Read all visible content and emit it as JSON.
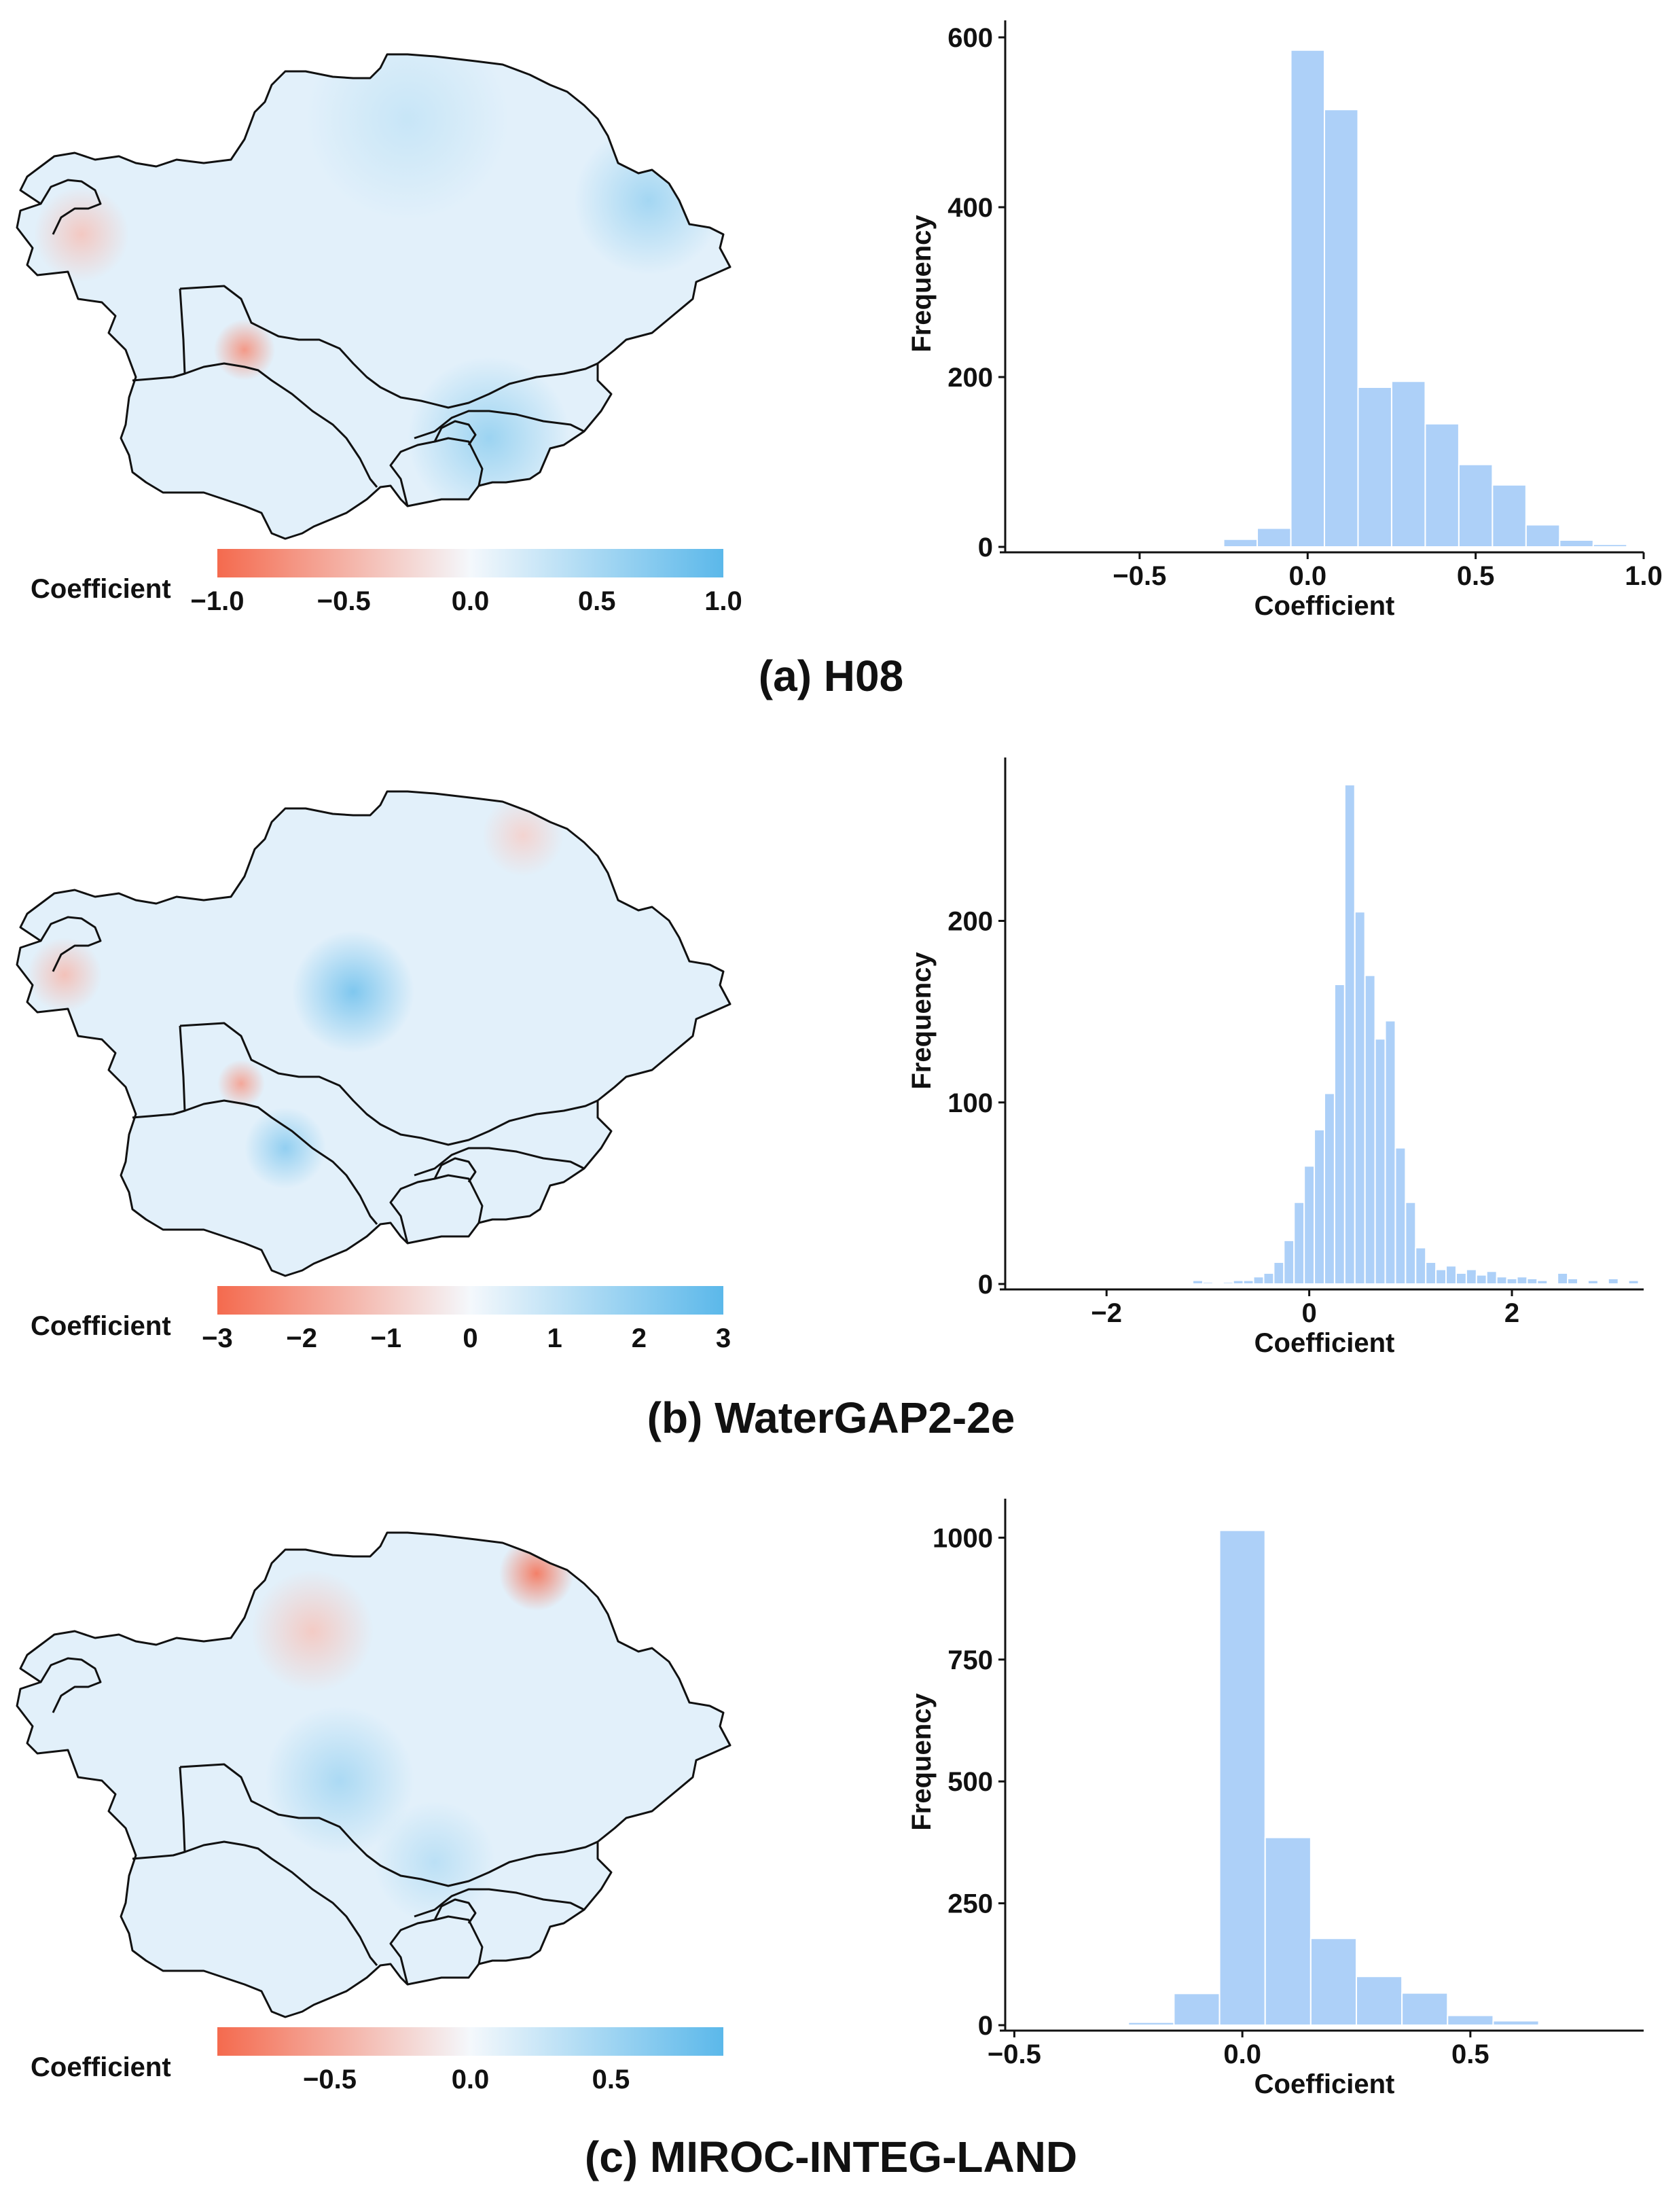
{
  "colors": {
    "negative": "#f46a4e",
    "neutral": "#f4f8fc",
    "positive": "#5bb8ea",
    "bar": "#add0f8",
    "border": "#111111"
  },
  "panels": [
    {
      "caption": "(a) H08",
      "colorbar": {
        "label": "Coefficient",
        "min": -1.0,
        "max": 1.0,
        "ticks": [
          "−1.0",
          "−0.5",
          "0.0",
          "0.5",
          "1.0"
        ],
        "tick_values": [
          -1.0,
          -0.5,
          0.0,
          0.5,
          1.0
        ]
      },
      "map": {
        "hotspots": [
          {
            "name": "east-blue",
            "value": 0.55
          },
          {
            "name": "southeast-blue",
            "value": 0.6
          },
          {
            "name": "west-red",
            "value": -0.35
          },
          {
            "name": "turkmen-red",
            "value": -0.7
          },
          {
            "name": "north-blue",
            "value": 0.3
          }
        ]
      }
    },
    {
      "caption": "(b) WaterGAP2-2e",
      "colorbar": {
        "label": "Coefficient",
        "min": -3,
        "max": 3,
        "ticks": [
          "−3",
          "−2",
          "−1",
          "0",
          "1",
          "2",
          "3"
        ],
        "tick_values": [
          -3,
          -2,
          -1,
          0,
          1,
          2,
          3
        ]
      },
      "map": {
        "hotspots": [
          {
            "name": "central-blue",
            "value": 2.4
          },
          {
            "name": "south-blue",
            "value": 2.0
          },
          {
            "name": "west-red",
            "value": -1.2
          },
          {
            "name": "turkmen-red",
            "value": -1.8
          },
          {
            "name": "north-red",
            "value": -0.8
          }
        ]
      }
    },
    {
      "caption": "(c) MIROC-INTEG-LAND",
      "colorbar": {
        "label": "Coefficient",
        "min": -0.9,
        "max": 0.9,
        "ticks": [
          "−0.5",
          "0.0",
          "0.5"
        ],
        "tick_values": [
          -0.5,
          0.0,
          0.5
        ]
      },
      "map": {
        "hotspots": [
          {
            "name": "northeast-red",
            "value": -0.8
          },
          {
            "name": "central-blue",
            "value": 0.45
          },
          {
            "name": "north-red",
            "value": -0.3
          },
          {
            "name": "southeast-blue",
            "value": 0.35
          }
        ]
      }
    }
  ],
  "chart_data": [
    {
      "type": "bar",
      "title": "",
      "xlabel": "Coefficient",
      "ylabel": "Frequency",
      "xlim": [
        -0.9,
        1.0
      ],
      "ylim": [
        0,
        620
      ],
      "xticks": [
        -0.5,
        0.0,
        0.5,
        1.0
      ],
      "xtick_labels": [
        "−0.5",
        "0.0",
        "0.5",
        "1.0"
      ],
      "yticks": [
        0,
        200,
        400,
        600
      ],
      "bin_width": 0.1,
      "bins": [
        {
          "x0": -0.45,
          "x1": -0.35,
          "count": 1
        },
        {
          "x0": -0.25,
          "x1": -0.15,
          "count": 9
        },
        {
          "x0": -0.15,
          "x1": -0.05,
          "count": 22
        },
        {
          "x0": -0.05,
          "x1": 0.05,
          "count": 585
        },
        {
          "x0": 0.05,
          "x1": 0.15,
          "count": 515
        },
        {
          "x0": 0.15,
          "x1": 0.25,
          "count": 188
        },
        {
          "x0": 0.25,
          "x1": 0.35,
          "count": 195
        },
        {
          "x0": 0.35,
          "x1": 0.45,
          "count": 145
        },
        {
          "x0": 0.45,
          "x1": 0.55,
          "count": 97
        },
        {
          "x0": 0.55,
          "x1": 0.65,
          "count": 73
        },
        {
          "x0": 0.65,
          "x1": 0.75,
          "count": 26
        },
        {
          "x0": 0.75,
          "x1": 0.85,
          "count": 8
        },
        {
          "x0": 0.85,
          "x1": 0.95,
          "count": 3
        }
      ]
    },
    {
      "type": "bar",
      "title": "",
      "xlabel": "Coefficient",
      "ylabel": "Frequency",
      "xlim": [
        -3.0,
        3.3
      ],
      "ylim": [
        0,
        290
      ],
      "xticks": [
        -2,
        0,
        2
      ],
      "xtick_labels": [
        "−2",
        "0",
        "2"
      ],
      "yticks": [
        0,
        100,
        200
      ],
      "bin_width": 0.1,
      "bins": [
        {
          "x0": -1.15,
          "x1": -1.05,
          "count": 2
        },
        {
          "x0": -1.05,
          "x1": -0.95,
          "count": 1
        },
        {
          "x0": -0.85,
          "x1": -0.75,
          "count": 1
        },
        {
          "x0": -0.75,
          "x1": -0.65,
          "count": 2
        },
        {
          "x0": -0.65,
          "x1": -0.55,
          "count": 2
        },
        {
          "x0": -0.55,
          "x1": -0.45,
          "count": 4
        },
        {
          "x0": -0.45,
          "x1": -0.35,
          "count": 6
        },
        {
          "x0": -0.35,
          "x1": -0.25,
          "count": 12
        },
        {
          "x0": -0.25,
          "x1": -0.15,
          "count": 24
        },
        {
          "x0": -0.15,
          "x1": -0.05,
          "count": 45
        },
        {
          "x0": -0.05,
          "x1": 0.05,
          "count": 65
        },
        {
          "x0": 0.05,
          "x1": 0.15,
          "count": 85
        },
        {
          "x0": 0.15,
          "x1": 0.25,
          "count": 105
        },
        {
          "x0": 0.25,
          "x1": 0.35,
          "count": 165
        },
        {
          "x0": 0.35,
          "x1": 0.45,
          "count": 275
        },
        {
          "x0": 0.45,
          "x1": 0.55,
          "count": 205
        },
        {
          "x0": 0.55,
          "x1": 0.65,
          "count": 170
        },
        {
          "x0": 0.65,
          "x1": 0.75,
          "count": 135
        },
        {
          "x0": 0.75,
          "x1": 0.85,
          "count": 145
        },
        {
          "x0": 0.85,
          "x1": 0.95,
          "count": 75
        },
        {
          "x0": 0.95,
          "x1": 1.05,
          "count": 45
        },
        {
          "x0": 1.05,
          "x1": 1.15,
          "count": 20
        },
        {
          "x0": 1.15,
          "x1": 1.25,
          "count": 12
        },
        {
          "x0": 1.25,
          "x1": 1.35,
          "count": 8
        },
        {
          "x0": 1.35,
          "x1": 1.45,
          "count": 10
        },
        {
          "x0": 1.45,
          "x1": 1.55,
          "count": 6
        },
        {
          "x0": 1.55,
          "x1": 1.65,
          "count": 8
        },
        {
          "x0": 1.65,
          "x1": 1.75,
          "count": 5
        },
        {
          "x0": 1.75,
          "x1": 1.85,
          "count": 7
        },
        {
          "x0": 1.85,
          "x1": 1.95,
          "count": 4
        },
        {
          "x0": 1.95,
          "x1": 2.05,
          "count": 3
        },
        {
          "x0": 2.05,
          "x1": 2.15,
          "count": 4
        },
        {
          "x0": 2.15,
          "x1": 2.25,
          "count": 3
        },
        {
          "x0": 2.25,
          "x1": 2.35,
          "count": 2
        },
        {
          "x0": 2.45,
          "x1": 2.55,
          "count": 6
        },
        {
          "x0": 2.55,
          "x1": 2.65,
          "count": 3
        },
        {
          "x0": 2.75,
          "x1": 2.85,
          "count": 2
        },
        {
          "x0": 2.95,
          "x1": 3.05,
          "count": 3
        },
        {
          "x0": 3.15,
          "x1": 3.25,
          "count": 2
        }
      ]
    },
    {
      "type": "bar",
      "title": "",
      "xlabel": "Coefficient",
      "ylabel": "Frequency",
      "xlim": [
        -0.52,
        0.88
      ],
      "ylim": [
        0,
        1080
      ],
      "xticks": [
        -0.5,
        0.0,
        0.5
      ],
      "xtick_labels": [
        "−0.5",
        "0.0",
        "0.5"
      ],
      "yticks": [
        0,
        250,
        500,
        750,
        1000
      ],
      "bin_width": 0.1,
      "bins": [
        {
          "x0": -0.45,
          "x1": -0.35,
          "count": 1
        },
        {
          "x0": -0.25,
          "x1": -0.15,
          "count": 6
        },
        {
          "x0": -0.15,
          "x1": -0.05,
          "count": 65
        },
        {
          "x0": -0.05,
          "x1": 0.05,
          "count": 1015
        },
        {
          "x0": 0.05,
          "x1": 0.15,
          "count": 385
        },
        {
          "x0": 0.15,
          "x1": 0.25,
          "count": 178
        },
        {
          "x0": 0.25,
          "x1": 0.35,
          "count": 100
        },
        {
          "x0": 0.35,
          "x1": 0.45,
          "count": 66
        },
        {
          "x0": 0.45,
          "x1": 0.55,
          "count": 20
        },
        {
          "x0": 0.55,
          "x1": 0.65,
          "count": 9
        },
        {
          "x0": 0.65,
          "x1": 0.75,
          "count": 2
        }
      ]
    }
  ]
}
